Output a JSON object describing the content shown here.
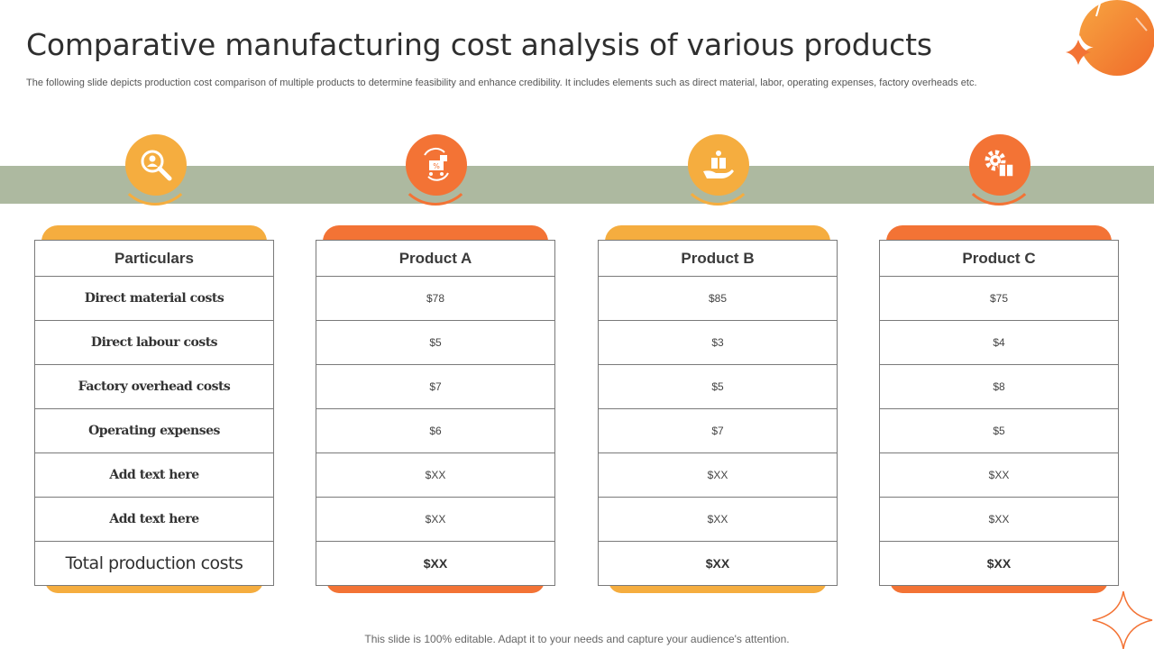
{
  "title": "Comparative manufacturing cost analysis of various products",
  "subtitle": "The following slide depicts production cost comparison of multiple products to determine feasibility and enhance credibility. It includes elements such as direct material, labor, operating expenses, factory overheads etc.",
  "colors": {
    "yellow": "#f5ad3f",
    "orange": "#f37335",
    "band": "#adb9a0"
  },
  "icons": [
    "magnifier-person-icon",
    "shopping-cart-discount-icon",
    "hand-gift-icon",
    "gear-box-icon"
  ],
  "columns": [
    {
      "header": "Particulars",
      "cells": [
        "Direct material costs",
        "Direct labour costs",
        "Factory overhead costs",
        "Operating expenses",
        "Add text here",
        "Add text here",
        "Total production costs"
      ]
    },
    {
      "header": "Product A",
      "cells": [
        "$78",
        "$5",
        "$7",
        "$6",
        "$XX",
        "$XX",
        "$XX"
      ]
    },
    {
      "header": "Product B",
      "cells": [
        "$85",
        "$3",
        "$5",
        "$7",
        "$XX",
        "$XX",
        "$XX"
      ]
    },
    {
      "header": "Product C",
      "cells": [
        "$75",
        "$4",
        "$8",
        "$5",
        "$XX",
        "$XX",
        "$XX"
      ]
    }
  ],
  "footer": "This slide is 100% editable. Adapt it to your needs and capture your audience's attention."
}
